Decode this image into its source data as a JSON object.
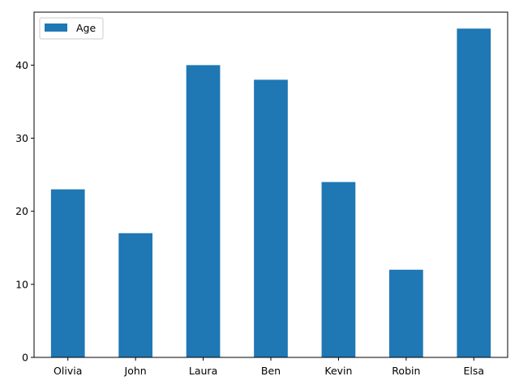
{
  "chart_data": {
    "type": "bar",
    "categories": [
      "Olivia",
      "John",
      "Laura",
      "Ben",
      "Kevin",
      "Robin",
      "Elsa"
    ],
    "series": [
      {
        "name": "Age",
        "values": [
          23,
          17,
          40,
          38,
          24,
          12,
          45
        ],
        "color": "#1f77b4"
      }
    ],
    "ylim": [
      0,
      47.25
    ],
    "yticks": [
      0,
      10,
      20,
      30,
      40
    ],
    "grid": false,
    "legend_position": "top-left"
  }
}
